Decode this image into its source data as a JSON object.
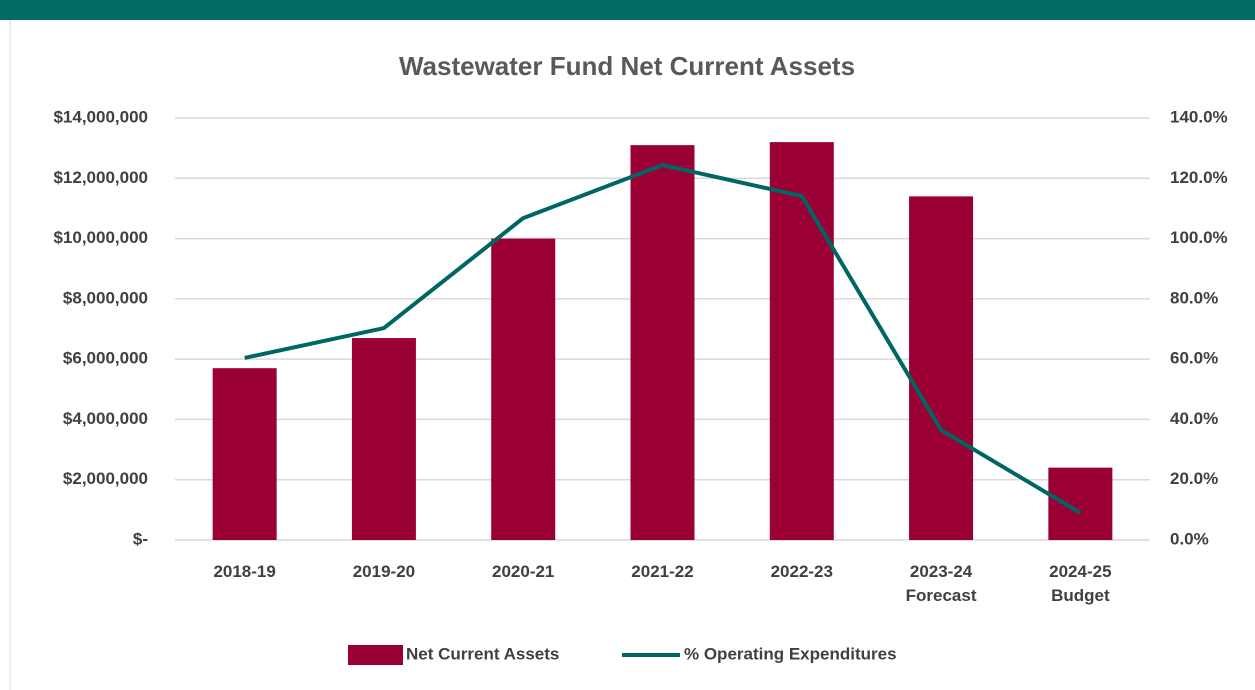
{
  "chart_data": {
    "type": "bar_line",
    "title": "Wastewater Fund Net Current Assets",
    "categories": [
      "2018-19",
      "2019-20",
      "2020-21",
      "2021-22",
      "2022-23",
      "2023-24\nForecast",
      "2024-25\nBudget"
    ],
    "series": [
      {
        "name": "Net Current Assets",
        "type": "bar",
        "color": "#9b0034",
        "axis": "y",
        "values": [
          5700000,
          6700000,
          10000000,
          13100000,
          13200000,
          11400000,
          2400000
        ]
      },
      {
        "name": "% Operating Expenditures",
        "type": "line",
        "color": "#006663",
        "axis": "y2",
        "values": [
          60.4,
          70.3,
          106.8,
          124.4,
          114.1,
          36.5,
          9.0
        ]
      }
    ],
    "ylim": [
      0,
      14000000
    ],
    "yticks": [
      {
        "value": 0,
        "label": "$-"
      },
      {
        "value": 2000000,
        "label": "$2,000,000"
      },
      {
        "value": 4000000,
        "label": "$4,000,000"
      },
      {
        "value": 6000000,
        "label": "$6,000,000"
      },
      {
        "value": 8000000,
        "label": "$8,000,000"
      },
      {
        "value": 10000000,
        "label": "$10,000,000"
      },
      {
        "value": 12000000,
        "label": "$12,000,000"
      },
      {
        "value": 14000000,
        "label": "$14,000,000"
      }
    ],
    "y2lim": [
      0,
      140
    ],
    "y2ticks": [
      {
        "value": 0,
        "label": "0.0%"
      },
      {
        "value": 20,
        "label": "20.0%"
      },
      {
        "value": 40,
        "label": "40.0%"
      },
      {
        "value": 60,
        "label": "60.0%"
      },
      {
        "value": 80,
        "label": "80.0%"
      },
      {
        "value": 100,
        "label": "100.0%"
      },
      {
        "value": 120,
        "label": "120.0%"
      },
      {
        "value": 140,
        "label": "140.0%"
      }
    ],
    "grid": true,
    "legend": "bottom"
  }
}
